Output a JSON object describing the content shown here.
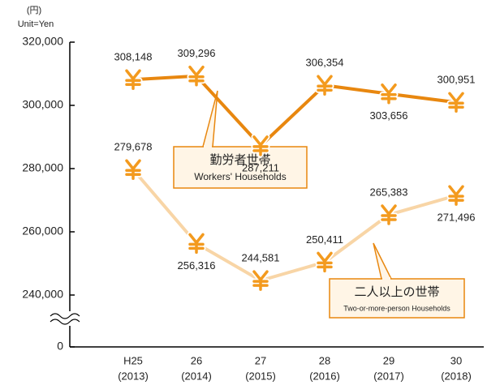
{
  "chart_data": {
    "type": "line",
    "unit_jp": "(円)",
    "unit": "Unit=Yen",
    "categories": [
      "H25",
      "26",
      "27",
      "28",
      "29",
      "30"
    ],
    "category_years": [
      "(2013)",
      "(2014)",
      "(2015)",
      "(2016)",
      "(2017)",
      "(2018)"
    ],
    "series": [
      {
        "name": "勤労者世帯",
        "name_en": "Workers' Households",
        "color": "#e8870f",
        "values": [
          308148,
          309296,
          287211,
          306354,
          303656,
          300951
        ],
        "value_labels": [
          "308,148",
          "309,296",
          "287,211",
          "306,354",
          "303,656",
          "300,951"
        ]
      },
      {
        "name": "二人以上の世帯",
        "name_en": "Two-or-more-person Households",
        "color": "#f8d5a6",
        "values": [
          279678,
          256316,
          244581,
          250411,
          265383,
          271496
        ],
        "value_labels": [
          "279,678",
          "256,316",
          "244,581",
          "250,411",
          "265,383",
          "271,496"
        ]
      }
    ],
    "ylim": [
      240000,
      320000
    ],
    "yticks": [
      {
        "value": 0,
        "label": "0"
      },
      {
        "value": 240000,
        "label": "240,000"
      },
      {
        "value": 260000,
        "label": "260,000"
      },
      {
        "value": 280000,
        "label": "280,000"
      },
      {
        "value": 300000,
        "label": "300,000"
      },
      {
        "value": 320000,
        "label": "320,000"
      }
    ],
    "axis_break": true,
    "marker_color": "#f39a1e"
  }
}
